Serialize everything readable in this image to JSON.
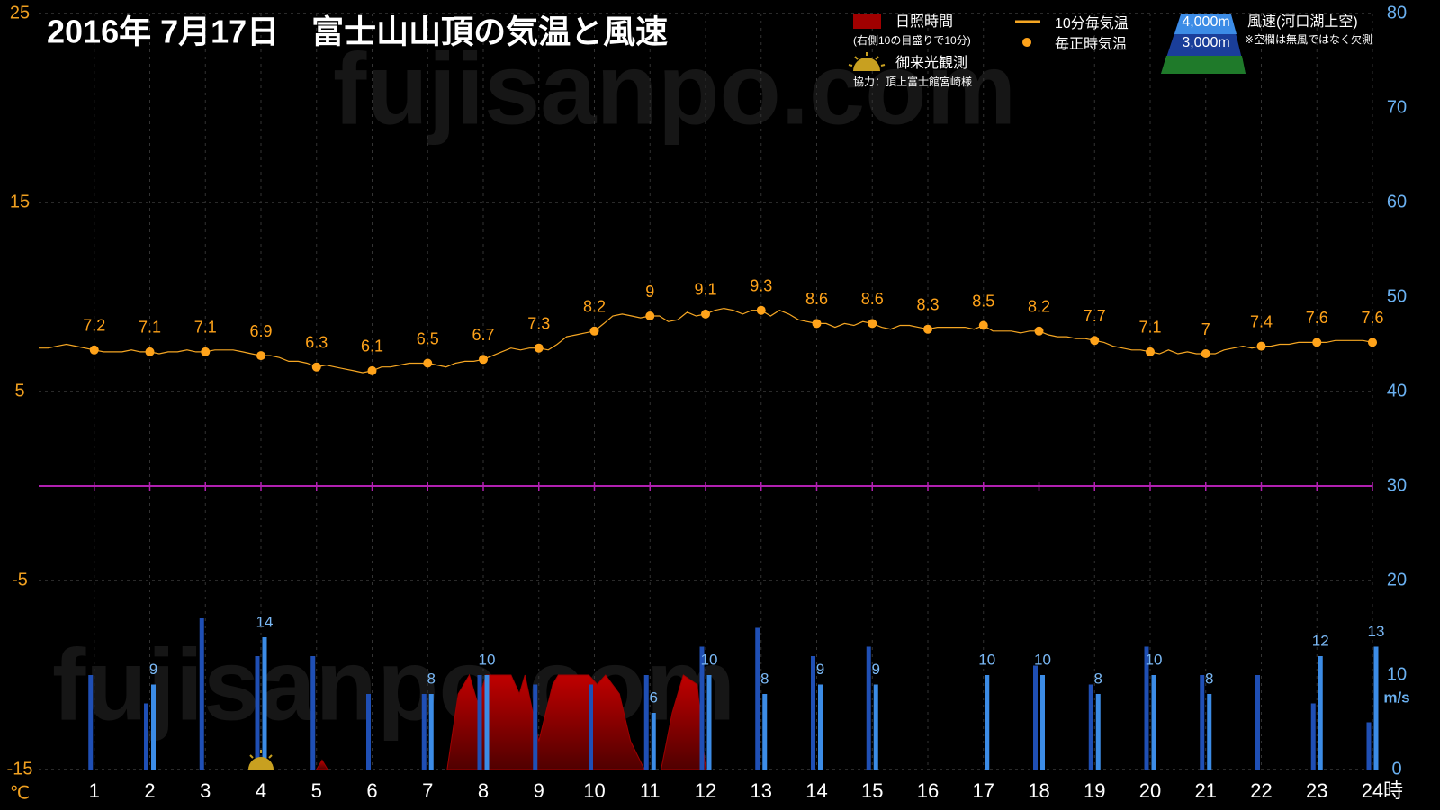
{
  "chart_data": {
    "type": "line",
    "title": "2016年 7月17日　富士山山頂の気温と風速",
    "watermark": "fujisanpo.com",
    "xlim": [
      0,
      24
    ],
    "xticks": [
      1,
      2,
      3,
      4,
      5,
      6,
      7,
      8,
      9,
      10,
      11,
      12,
      13,
      14,
      15,
      16,
      17,
      18,
      19,
      20,
      21,
      22,
      23,
      24
    ],
    "x_unit": "時",
    "ylim": [
      -15,
      25
    ],
    "yticks": [
      -15,
      -5,
      5,
      15,
      25
    ],
    "y_unit": "℃",
    "y2lim": [
      0,
      80
    ],
    "y2ticks": [
      0,
      10,
      20,
      30,
      40,
      50,
      60,
      70,
      80
    ],
    "y2_unit": "m/s",
    "grid": true,
    "reference_line": {
      "value": 0,
      "color": "#b020b0"
    },
    "sunshine_note": "(右側10の目盛りで10分)",
    "wind_label": "風速(河口湖上空)",
    "wind_note": "※空欄は無風ではなく欠測",
    "sunrise_label": "御来光観測",
    "credit": "協力：頂上富士館宮崎様",
    "series": [
      {
        "name": "10分毎気温",
        "type": "line",
        "color": "#f5a623",
        "x": [
          0,
          0.17,
          0.33,
          0.5,
          0.67,
          0.83,
          1,
          1.17,
          1.33,
          1.5,
          1.67,
          1.83,
          2,
          2.17,
          2.33,
          2.5,
          2.67,
          2.83,
          3,
          3.17,
          3.33,
          3.5,
          3.67,
          3.83,
          4,
          4.17,
          4.33,
          4.5,
          4.67,
          4.83,
          5,
          5.17,
          5.33,
          5.5,
          5.67,
          5.83,
          6,
          6.17,
          6.33,
          6.5,
          6.67,
          6.83,
          7,
          7.17,
          7.33,
          7.5,
          7.67,
          7.83,
          8,
          8.17,
          8.33,
          8.5,
          8.67,
          8.83,
          9,
          9.17,
          9.33,
          9.5,
          9.67,
          9.83,
          10,
          10.17,
          10.33,
          10.5,
          10.67,
          10.83,
          11,
          11.17,
          11.33,
          11.5,
          11.67,
          11.83,
          12,
          12.17,
          12.33,
          12.5,
          12.67,
          12.83,
          13,
          13.17,
          13.33,
          13.5,
          13.67,
          13.83,
          14,
          14.17,
          14.33,
          14.5,
          14.67,
          14.83,
          15,
          15.17,
          15.33,
          15.5,
          15.67,
          15.83,
          16,
          16.17,
          16.33,
          16.5,
          16.67,
          16.83,
          17,
          17.17,
          17.33,
          17.5,
          17.67,
          17.83,
          18,
          18.17,
          18.33,
          18.5,
          18.67,
          18.83,
          19,
          19.17,
          19.33,
          19.5,
          19.67,
          19.83,
          20,
          20.17,
          20.33,
          20.5,
          20.67,
          20.83,
          21,
          21.17,
          21.33,
          21.5,
          21.67,
          21.83,
          22,
          22.17,
          22.33,
          22.5,
          22.67,
          22.83,
          23,
          23.17,
          23.33,
          23.5,
          23.67,
          23.83,
          24
        ],
        "values": [
          7.3,
          7.3,
          7.4,
          7.5,
          7.4,
          7.3,
          7.2,
          7.1,
          7.1,
          7.1,
          7.2,
          7.1,
          7.1,
          7.0,
          7.1,
          7.1,
          7.2,
          7.1,
          7.1,
          7.2,
          7.2,
          7.2,
          7.1,
          7.0,
          6.9,
          6.9,
          6.8,
          6.6,
          6.6,
          6.5,
          6.3,
          6.4,
          6.3,
          6.2,
          6.1,
          6.0,
          6.1,
          6.3,
          6.3,
          6.4,
          6.5,
          6.5,
          6.5,
          6.4,
          6.3,
          6.5,
          6.6,
          6.6,
          6.7,
          6.9,
          7.1,
          7.3,
          7.2,
          7.3,
          7.3,
          7.2,
          7.5,
          7.9,
          8.0,
          8.1,
          8.2,
          8.6,
          9.0,
          9.1,
          9.0,
          8.9,
          9.0,
          9.0,
          8.7,
          8.8,
          9.2,
          9.0,
          9.1,
          9.3,
          9.4,
          9.3,
          9.1,
          9.3,
          9.3,
          9.0,
          9.3,
          9.1,
          8.8,
          8.7,
          8.6,
          8.6,
          8.4,
          8.6,
          8.5,
          8.7,
          8.6,
          8.4,
          8.3,
          8.5,
          8.5,
          8.4,
          8.3,
          8.4,
          8.4,
          8.4,
          8.4,
          8.3,
          8.5,
          8.2,
          8.2,
          8.2,
          8.1,
          8.2,
          8.2,
          8.0,
          7.9,
          7.9,
          7.8,
          7.8,
          7.7,
          7.6,
          7.4,
          7.3,
          7.2,
          7.2,
          7.1,
          7.0,
          7.2,
          7.0,
          7.1,
          7.0,
          7.0,
          7.0,
          7.2,
          7.3,
          7.4,
          7.3,
          7.4,
          7.4,
          7.5,
          7.5,
          7.6,
          7.6,
          7.6,
          7.6,
          7.7,
          7.7,
          7.7,
          7.7,
          7.6
        ]
      },
      {
        "name": "毎正時気温",
        "type": "scatter",
        "color": "#ffa31a",
        "x": [
          1,
          2,
          3,
          4,
          5,
          6,
          7,
          8,
          9,
          10,
          11,
          12,
          13,
          14,
          15,
          16,
          17,
          18,
          19,
          20,
          21,
          22,
          23,
          24
        ],
        "values": [
          7.2,
          7.1,
          7.1,
          6.9,
          6.3,
          6.1,
          6.5,
          6.7,
          7.3,
          8.2,
          9,
          9.1,
          9.3,
          8.6,
          8.6,
          8.3,
          8.5,
          8.2,
          7.7,
          7.1,
          7,
          7.4,
          7.6,
          7.6
        ]
      },
      {
        "name": "日照時間",
        "type": "area",
        "axis": "y2",
        "color": "#a00000",
        "x": [
          5.0,
          5.1,
          5.2,
          6,
          7.35,
          7.55,
          7.75,
          7.9,
          8.05,
          8.5,
          8.65,
          8.75,
          9.0,
          9.25,
          9.35,
          9.9,
          10.05,
          10.2,
          10.45,
          10.65,
          10.9,
          11,
          11.2,
          11.4,
          11.6,
          11.85,
          12.0
        ],
        "values": [
          0,
          1,
          0,
          null,
          0,
          8,
          10,
          7,
          10,
          10,
          8,
          10,
          3,
          9,
          10,
          10,
          9,
          10,
          8,
          3,
          0,
          null,
          0,
          6,
          10,
          9,
          0
        ]
      },
      {
        "name": "3,000m",
        "type": "bar",
        "axis": "y2",
        "color": "#1f4fb5",
        "x": [
          1,
          2,
          3,
          4,
          5,
          6,
          7,
          8,
          9,
          10,
          11,
          12,
          13,
          14,
          15,
          16,
          17,
          18,
          19,
          20,
          21,
          22,
          23,
          24
        ],
        "values": [
          10,
          7,
          16,
          12,
          12,
          8,
          8,
          10,
          9,
          9,
          10,
          13,
          15,
          12,
          13,
          null,
          null,
          11,
          9,
          13,
          10,
          10,
          7,
          5
        ]
      },
      {
        "name": "4,000m",
        "type": "bar",
        "axis": "y2",
        "color": "#3c8ce6",
        "x": [
          1,
          2,
          3,
          4,
          5,
          6,
          7,
          8,
          9,
          10,
          11,
          12,
          13,
          14,
          15,
          16,
          17,
          18,
          19,
          20,
          21,
          22,
          23,
          24
        ],
        "values": [
          null,
          9,
          null,
          14,
          null,
          null,
          8,
          10,
          null,
          null,
          6,
          10,
          8,
          9,
          9,
          null,
          10,
          10,
          8,
          10,
          8,
          null,
          12,
          13
        ]
      }
    ]
  }
}
